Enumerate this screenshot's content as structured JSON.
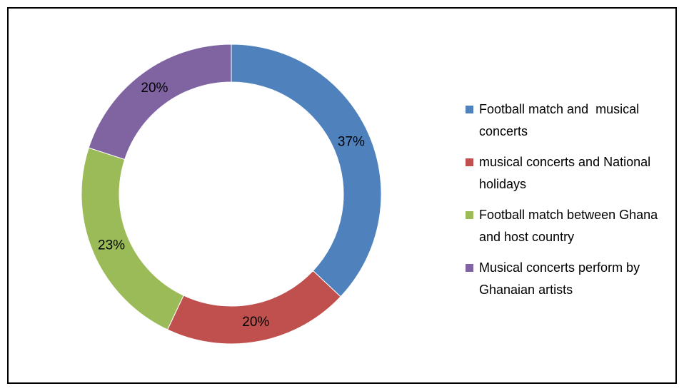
{
  "chart_data": {
    "type": "donut",
    "categories": [
      "Football match and  musical concerts",
      "musical concerts and National holidays",
      "Football match between Ghana and host country",
      "Musical concerts perform by Ghanaian artists"
    ],
    "values": [
      37,
      20,
      23,
      20
    ],
    "value_labels": [
      "37%",
      "20%",
      "23%",
      "20%"
    ],
    "colors": [
      "#4f81bd",
      "#c0504d",
      "#9bbb59",
      "#8064a2"
    ],
    "legend": "right"
  }
}
